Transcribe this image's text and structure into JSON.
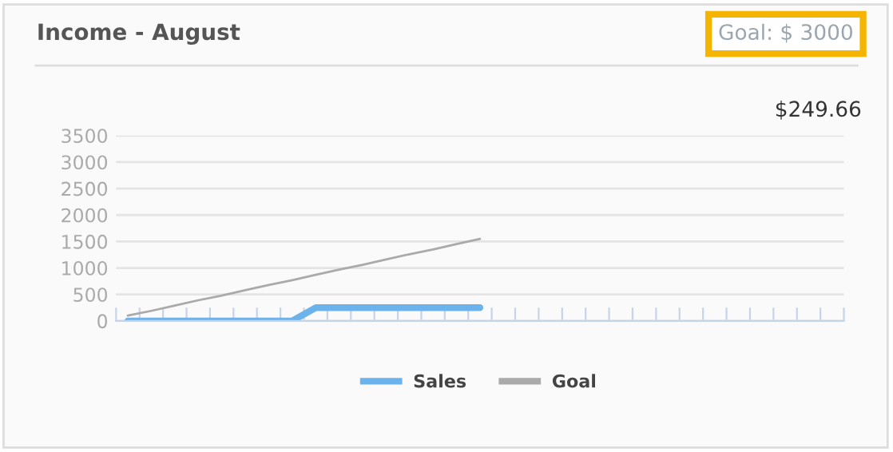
{
  "chart_data": {
    "type": "line",
    "title": "Income - August",
    "annotations": [
      "Goal: $ 3000",
      "$249.66"
    ],
    "categories": [
      null,
      null,
      null,
      null,
      null,
      null,
      null,
      null,
      null,
      null,
      null,
      null,
      null,
      null,
      null,
      null,
      null,
      null,
      null,
      null,
      null,
      null,
      null,
      null,
      null,
      null,
      null,
      null,
      null,
      null,
      null
    ],
    "series": [
      {
        "name": "Sales",
        "color": "#6cb2eb",
        "values": [
          0,
          0,
          0,
          0,
          0,
          0,
          0,
          0,
          250,
          250,
          250,
          250,
          250,
          250,
          250,
          250,
          null,
          null,
          null,
          null,
          null,
          null,
          null,
          null,
          null,
          null,
          null,
          null,
          null,
          null,
          null
        ]
      },
      {
        "name": "Goal",
        "color": "#aaaaaa",
        "values": [
          100,
          190,
          290,
          390,
          480,
          580,
          680,
          770,
          870,
          970,
          1060,
          1160,
          1260,
          1350,
          1450,
          1550,
          null,
          null,
          null,
          null,
          null,
          null,
          null,
          null,
          null,
          null,
          null,
          null,
          null,
          null,
          null
        ]
      }
    ],
    "ylim": [
      0,
      3500
    ],
    "yticks": [
      0,
      500,
      1000,
      1500,
      2000,
      2500,
      3000,
      3500
    ],
    "grid": "y",
    "legend": "bottom",
    "tick_labels": "y"
  }
}
